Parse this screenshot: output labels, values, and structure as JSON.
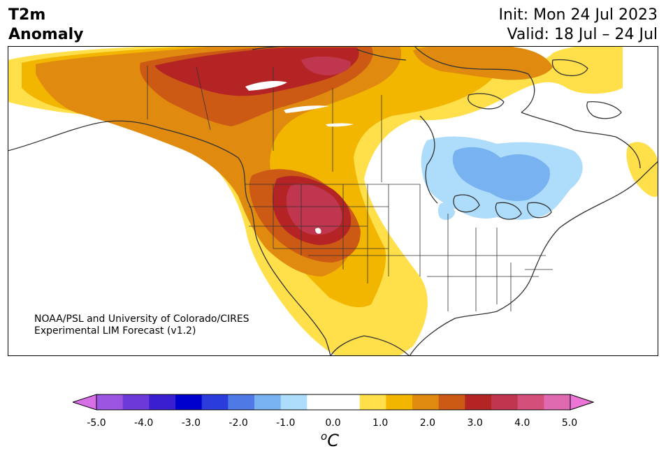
{
  "title": {
    "left_line1": "T2m",
    "left_line2": "Anomaly",
    "init": "Init: Mon 24 Jul 2023",
    "valid": "Valid: 18 Jul – 24 Jul"
  },
  "credit": {
    "line1": "NOAA/PSL and University of Colorado/CIRES",
    "line2": "Experimental LIM Forecast (v1.2)"
  },
  "colorbar": {
    "unit_sup": "o",
    "unit": "C",
    "colors": [
      "#d86ee8",
      "#9b55e0",
      "#6b3ad8",
      "#3a1fd0",
      "#0000cd",
      "#2a3cdb",
      "#4f7ae6",
      "#78b2f0",
      "#aedcfb",
      "#ffffff",
      "#ffffff",
      "#ffe04a",
      "#f2b600",
      "#e08a10",
      "#cc5a14",
      "#b52424",
      "#c0364e",
      "#d4507a",
      "#e06ab0",
      "#ec76d8"
    ],
    "ticks": [
      "-5.0",
      "-4.0",
      "-3.0",
      "-2.0",
      "-1.0",
      "0.0",
      "1.0",
      "2.0",
      "3.0",
      "4.0",
      "5.0"
    ]
  },
  "legend_colors": {
    "warm_1": "#ffe04a",
    "warm_2": "#f2b600",
    "warm_3": "#e08a10",
    "warm_4": "#cc5a14",
    "warm_5": "#b52424",
    "warm_6": "#c0364e",
    "cool_1": "#aedcfb",
    "cool_2": "#78b2f0"
  }
}
